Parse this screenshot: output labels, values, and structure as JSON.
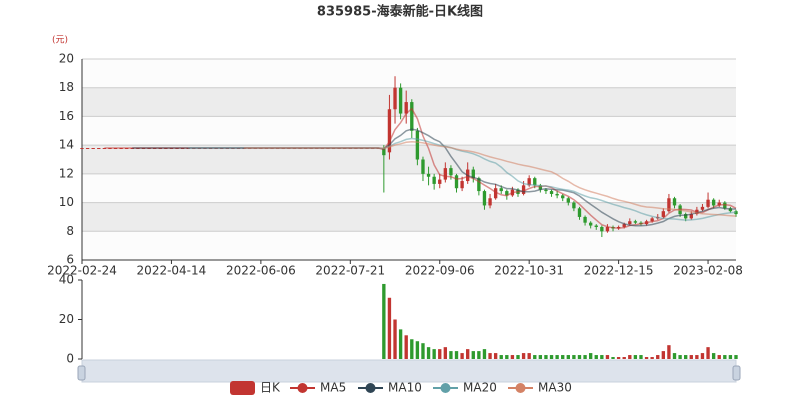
{
  "chart_data": {
    "type": "candlestick",
    "title": "835985-海泰新能-日K线图",
    "y_unit": "(元)",
    "categories": [
      "2022-02-24",
      null,
      null,
      null,
      null,
      null,
      null,
      null,
      null,
      null,
      null,
      null,
      null,
      null,
      null,
      null,
      "2022-04-14",
      null,
      null,
      null,
      null,
      null,
      null,
      null,
      null,
      null,
      null,
      null,
      null,
      null,
      null,
      null,
      "2022-06-06",
      null,
      null,
      null,
      null,
      null,
      null,
      null,
      null,
      null,
      null,
      null,
      null,
      null,
      null,
      null,
      "2022-07-21",
      null,
      null,
      null,
      null,
      null,
      null,
      null,
      null,
      null,
      null,
      null,
      null,
      null,
      null,
      null,
      "2022-09-06",
      null,
      null,
      null,
      null,
      null,
      null,
      null,
      null,
      null,
      null,
      null,
      null,
      null,
      null,
      null,
      "2022-10-31",
      null,
      null,
      null,
      null,
      null,
      null,
      null,
      null,
      null,
      null,
      null,
      null,
      null,
      null,
      null,
      "2022-12-15",
      null,
      null,
      null,
      null,
      null,
      null,
      null,
      null,
      null,
      null,
      null,
      null,
      null,
      null,
      null,
      "2023-02-08",
      null,
      null,
      null,
      null,
      null
    ],
    "series": [
      {
        "name": "日K",
        "color": "#c23531",
        "down_color": "#2e9a2e",
        "open": [
          13.8,
          13.8,
          13.8,
          13.8,
          13.8,
          13.8,
          13.8,
          13.8,
          13.8,
          13.8,
          13.8,
          13.8,
          13.8,
          13.8,
          13.8,
          13.8,
          13.8,
          13.8,
          13.8,
          13.8,
          13.8,
          13.8,
          13.8,
          13.8,
          13.8,
          13.8,
          13.8,
          13.8,
          13.8,
          13.8,
          13.8,
          13.8,
          13.8,
          13.8,
          13.8,
          13.8,
          13.8,
          13.8,
          13.8,
          13.8,
          13.8,
          13.8,
          13.8,
          13.8,
          13.8,
          13.8,
          13.8,
          13.8,
          13.8,
          13.8,
          13.8,
          13.8,
          13.8,
          13.8,
          13.8,
          13.5,
          16.5,
          18.0,
          16.2,
          17.0,
          15.0,
          13.0,
          12.0,
          11.8,
          11.3,
          11.6,
          12.4,
          11.9,
          11.0,
          11.5,
          12.3,
          11.7,
          10.8,
          9.8,
          10.3,
          11.0,
          10.8,
          10.5,
          10.9,
          10.6,
          11.2,
          11.7,
          11.2,
          10.9,
          10.8,
          10.6,
          10.5,
          10.3,
          10.0,
          9.6,
          9.0,
          8.6,
          8.4,
          8.3,
          8.0,
          8.3,
          8.2,
          8.3,
          8.5,
          8.7,
          8.6,
          8.5,
          8.7,
          8.9,
          9.0,
          9.4,
          10.3,
          9.8,
          9.2,
          8.9,
          9.2,
          9.5,
          9.7,
          10.2,
          9.8,
          10.0,
          9.6,
          9.4
        ],
        "close": [
          13.8,
          13.8,
          13.8,
          13.8,
          13.8,
          13.8,
          13.8,
          13.8,
          13.8,
          13.8,
          13.8,
          13.8,
          13.8,
          13.8,
          13.8,
          13.8,
          13.8,
          13.8,
          13.8,
          13.8,
          13.8,
          13.8,
          13.8,
          13.8,
          13.8,
          13.8,
          13.8,
          13.8,
          13.8,
          13.8,
          13.8,
          13.8,
          13.8,
          13.8,
          13.8,
          13.8,
          13.8,
          13.8,
          13.8,
          13.8,
          13.8,
          13.8,
          13.8,
          13.8,
          13.8,
          13.8,
          13.8,
          13.8,
          13.8,
          13.8,
          13.8,
          13.8,
          13.8,
          13.8,
          13.3,
          16.5,
          18.0,
          16.2,
          17.0,
          15.0,
          13.0,
          12.0,
          11.8,
          11.3,
          11.6,
          12.4,
          11.9,
          11.0,
          11.5,
          12.3,
          11.7,
          10.8,
          9.8,
          10.3,
          11.0,
          10.8,
          10.5,
          10.9,
          10.6,
          11.2,
          11.7,
          11.2,
          10.9,
          10.8,
          10.6,
          10.5,
          10.3,
          10.0,
          9.6,
          9.0,
          8.6,
          8.4,
          8.3,
          8.0,
          8.3,
          8.2,
          8.3,
          8.5,
          8.7,
          8.6,
          8.5,
          8.7,
          8.9,
          9.0,
          9.4,
          10.3,
          9.8,
          9.2,
          8.9,
          9.2,
          9.5,
          9.7,
          10.2,
          9.8,
          10.0,
          9.6,
          9.4,
          9.2
        ],
        "high": [
          13.8,
          13.8,
          13.8,
          13.8,
          13.8,
          13.8,
          13.8,
          13.8,
          13.8,
          13.8,
          13.8,
          13.8,
          13.8,
          13.8,
          13.8,
          13.8,
          13.8,
          13.8,
          13.8,
          13.8,
          13.8,
          13.8,
          13.8,
          13.8,
          13.8,
          13.8,
          13.8,
          13.8,
          13.8,
          13.8,
          13.8,
          13.8,
          13.8,
          13.8,
          13.8,
          13.8,
          13.8,
          13.8,
          13.8,
          13.8,
          13.8,
          13.8,
          13.8,
          13.8,
          13.8,
          13.8,
          13.8,
          13.8,
          13.8,
          13.8,
          13.8,
          13.8,
          13.8,
          13.8,
          14.0,
          17.5,
          18.8,
          18.3,
          17.8,
          17.2,
          15.2,
          13.2,
          12.5,
          12.0,
          12.0,
          12.8,
          12.6,
          12.0,
          11.8,
          12.8,
          12.5,
          11.8,
          10.9,
          10.6,
          11.3,
          11.2,
          10.9,
          11.1,
          11.0,
          11.5,
          11.9,
          11.8,
          11.3,
          11.0,
          10.9,
          10.8,
          10.6,
          10.4,
          10.1,
          9.7,
          9.1,
          8.7,
          8.5,
          8.4,
          8.5,
          8.4,
          8.4,
          8.6,
          8.9,
          8.8,
          8.7,
          8.8,
          9.0,
          9.2,
          9.6,
          10.6,
          10.4,
          9.9,
          9.3,
          9.4,
          9.7,
          9.9,
          10.7,
          10.3,
          10.2,
          10.1,
          9.7,
          9.5
        ],
        "low": [
          13.8,
          13.8,
          13.8,
          13.8,
          13.8,
          13.8,
          13.8,
          13.8,
          13.8,
          13.8,
          13.8,
          13.8,
          13.8,
          13.8,
          13.8,
          13.8,
          13.8,
          13.8,
          13.8,
          13.8,
          13.8,
          13.8,
          13.8,
          13.8,
          13.8,
          13.8,
          13.8,
          13.8,
          13.8,
          13.8,
          13.8,
          13.8,
          13.8,
          13.8,
          13.8,
          13.8,
          13.8,
          13.8,
          13.8,
          13.8,
          13.8,
          13.8,
          13.8,
          13.8,
          13.8,
          13.8,
          13.8,
          13.8,
          13.8,
          13.8,
          13.8,
          13.8,
          13.8,
          13.8,
          10.7,
          13.0,
          15.5,
          15.8,
          15.5,
          14.5,
          12.6,
          11.5,
          11.2,
          10.9,
          11.0,
          11.4,
          11.6,
          10.7,
          10.8,
          11.3,
          11.4,
          10.5,
          9.5,
          9.6,
          10.2,
          10.6,
          10.2,
          10.4,
          10.4,
          10.5,
          11.1,
          11.0,
          10.7,
          10.6,
          10.4,
          10.3,
          10.1,
          9.8,
          9.4,
          8.8,
          8.4,
          8.2,
          8.1,
          7.6,
          7.9,
          8.0,
          8.1,
          8.2,
          8.4,
          8.5,
          8.4,
          8.4,
          8.6,
          8.8,
          8.9,
          9.3,
          9.6,
          9.0,
          8.7,
          8.8,
          9.1,
          9.4,
          9.6,
          9.6,
          9.7,
          9.5,
          9.3,
          9.0
        ]
      },
      {
        "name": "MA5",
        "color": "#c23531",
        "period": 5
      },
      {
        "name": "MA10",
        "color": "#2f4554",
        "period": 10
      },
      {
        "name": "MA20",
        "color": "#61a0a8",
        "period": 20
      },
      {
        "name": "MA30",
        "color": "#d48265",
        "period": 30
      }
    ],
    "volume": [
      0,
      0,
      0,
      0,
      0,
      0,
      0,
      0,
      0,
      0,
      0,
      0,
      0,
      0,
      0,
      0,
      0,
      0,
      0,
      0,
      0,
      0,
      0,
      0,
      0,
      0,
      0,
      0,
      0,
      0,
      0,
      0,
      0,
      0,
      0,
      0,
      0,
      0,
      0,
      0,
      0,
      0,
      0,
      0,
      0,
      0,
      0,
      0,
      0,
      0,
      0,
      0,
      0,
      0,
      38,
      31,
      20,
      15,
      12,
      10,
      9,
      8,
      6,
      5,
      5,
      6,
      4,
      4,
      3,
      5,
      4,
      4,
      5,
      3,
      3,
      2,
      2,
      2,
      2,
      3,
      3,
      2,
      2,
      2,
      2,
      2,
      2,
      2,
      2,
      2,
      2,
      3,
      2,
      2,
      2,
      1,
      1,
      1,
      2,
      2,
      2,
      1,
      1,
      2,
      4,
      7,
      3,
      2,
      2,
      2,
      2,
      3,
      6,
      3,
      2,
      2,
      2,
      2
    ],
    "ylim": [
      6,
      20
    ],
    "yticks": [
      6,
      8,
      10,
      12,
      14,
      16,
      18,
      20
    ],
    "y2lim": [
      0,
      40
    ],
    "y2ticks": [
      0,
      20,
      40
    ],
    "split_area": true
  }
}
